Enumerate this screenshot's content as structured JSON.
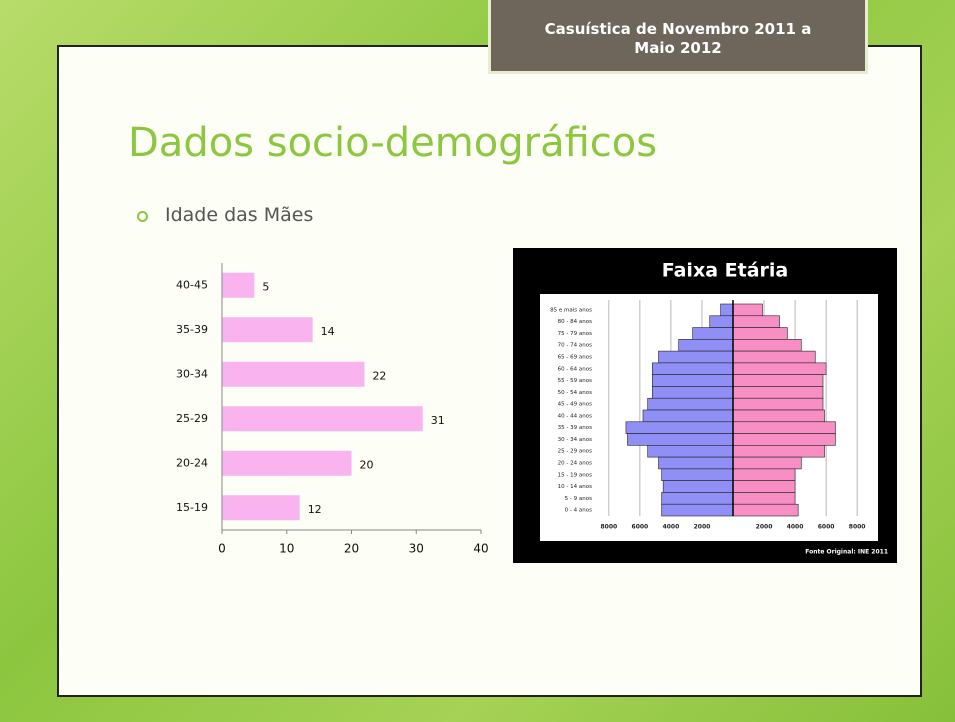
{
  "header": {
    "text": "Casuística de Novembro 2011 a Maio 2012"
  },
  "title": "Dados socio-demográficos",
  "bullet": "Idade das Mães",
  "chart_data": [
    {
      "type": "bar",
      "orientation": "horizontal",
      "categories": [
        "40-45",
        "35-39",
        "30-34",
        "25-29",
        "20-24",
        "15-19"
      ],
      "values": [
        5,
        14,
        22,
        31,
        20,
        12
      ],
      "color": "#f9b4ef",
      "xlim": [
        0,
        40
      ],
      "xticks": [
        0,
        10,
        20,
        30,
        40
      ]
    },
    {
      "type": "pyramid",
      "title": "Faixa Etária",
      "source": "Fonte Original: INE 2011",
      "categories": [
        "85 e mais anos",
        "80 - 84 anos",
        "75 - 79 anos",
        "70 - 74 anos",
        "65 - 69 anos",
        "60 - 64 anos",
        "55 - 59 anos",
        "50 - 54 anos",
        "45 - 49 anos",
        "40 - 44 anos",
        "35 - 39 anos",
        "30 - 34 anos",
        "25 - 29 anos",
        "20 - 24 anos",
        "15 - 19 anos",
        "10 - 14 anos",
        "5 - 9 anos",
        "0 - 4 anos"
      ],
      "series": [
        {
          "color": "#8f8ff5",
          "side": "left",
          "values": [
            800,
            1500,
            2600,
            3500,
            4800,
            5200,
            5200,
            5200,
            5500,
            5800,
            6900,
            6800,
            5500,
            4800,
            4600,
            4500,
            4600,
            4600
          ]
        },
        {
          "color": "#f78fc4",
          "side": "right",
          "values": [
            1900,
            3000,
            3500,
            4400,
            5300,
            6000,
            5800,
            5800,
            5800,
            5900,
            6600,
            6600,
            5900,
            4400,
            4000,
            4000,
            4000,
            4200
          ]
        }
      ],
      "xlim": [
        -8700,
        8700
      ],
      "xticks": [
        {
          "value": -8000,
          "label": "8000"
        },
        {
          "value": -6000,
          "label": "6000"
        },
        {
          "value": -4000,
          "label": "4000"
        },
        {
          "value": -2000,
          "label": "2000"
        },
        2000,
        4000,
        6000,
        8000
      ]
    }
  ]
}
